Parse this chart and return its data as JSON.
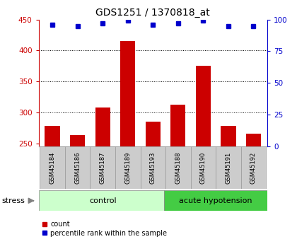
{
  "title": "GDS1251 / 1370818_at",
  "samples": [
    "GSM45184",
    "GSM45186",
    "GSM45187",
    "GSM45189",
    "GSM45193",
    "GSM45188",
    "GSM45190",
    "GSM45191",
    "GSM45192"
  ],
  "counts": [
    278,
    263,
    308,
    415,
    285,
    312,
    375,
    278,
    265
  ],
  "percentile_ranks": [
    96,
    95,
    97,
    99,
    96,
    97,
    99,
    95,
    95
  ],
  "ylim_left": [
    245,
    450
  ],
  "ylim_right": [
    0,
    100
  ],
  "yticks_left": [
    250,
    300,
    350,
    400,
    450
  ],
  "yticks_right": [
    0,
    25,
    50,
    75,
    100
  ],
  "bar_color": "#cc0000",
  "dot_color": "#0000cc",
  "control_samples": 5,
  "acute_samples": 4,
  "control_label": "control",
  "acute_label": "acute hypotension",
  "control_bg": "#ccffcc",
  "acute_bg": "#44cc44",
  "sample_bg": "#cccccc",
  "stress_label": "stress",
  "legend_count_label": "count",
  "legend_pct_label": "percentile rank within the sample",
  "grid_color": "#000000",
  "axis_left_color": "#cc0000",
  "axis_right_color": "#0000cc",
  "grid_yticks": [
    300,
    350,
    400
  ]
}
